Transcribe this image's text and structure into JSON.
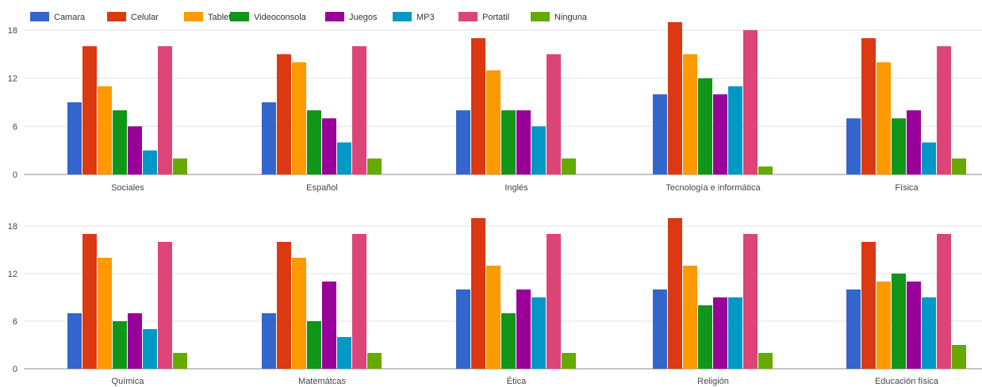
{
  "chart_data": {
    "type": "bar",
    "legend_position": "top-left",
    "grid": true,
    "ylim": [
      0,
      18
    ],
    "yticks": [
      0,
      6,
      12,
      18
    ],
    "colors": [
      "#3366cc",
      "#dc3912",
      "#ff9900",
      "#109618",
      "#990099",
      "#0099c6",
      "#dd4477",
      "#66aa00"
    ],
    "series_names": [
      "Camara",
      "Celular",
      "Tablet",
      "Videoconsola",
      "Juegos",
      "MP3",
      "Portatil",
      "Ninguna"
    ],
    "categories": [
      "Sociales",
      "Español",
      "Inglés",
      "Tecnología e informática",
      "Física",
      "Química",
      "Matemátcas",
      "Ética",
      "Religión",
      "Educación física"
    ],
    "values": [
      [
        9,
        16,
        11,
        8,
        6,
        3,
        16,
        2
      ],
      [
        9,
        15,
        14,
        8,
        7,
        4,
        16,
        2
      ],
      [
        8,
        17,
        13,
        8,
        8,
        6,
        15,
        2
      ],
      [
        10,
        19,
        15,
        12,
        10,
        11,
        18,
        1
      ],
      [
        7,
        17,
        14,
        7,
        8,
        4,
        16,
        2
      ],
      [
        7,
        17,
        14,
        6,
        7,
        5,
        16,
        2
      ],
      [
        7,
        16,
        14,
        6,
        11,
        4,
        17,
        2
      ],
      [
        10,
        19,
        13,
        7,
        10,
        9,
        17,
        2
      ],
      [
        10,
        19,
        13,
        8,
        9,
        9,
        17,
        2
      ],
      [
        10,
        16,
        11,
        12,
        11,
        9,
        17,
        3
      ]
    ]
  }
}
